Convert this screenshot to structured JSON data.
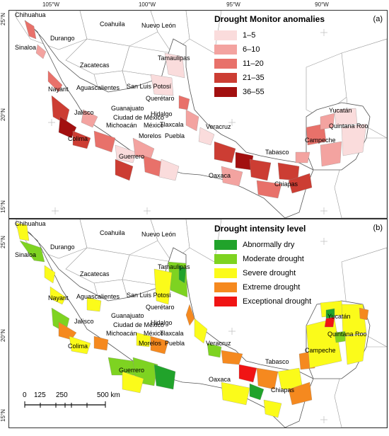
{
  "coordinates": {
    "longitudes": [
      "105°W",
      "100°W",
      "95°W",
      "90°W"
    ],
    "latitudes": [
      "25°N",
      "20°N",
      "15°N"
    ]
  },
  "panel_a": {
    "tag": "(a)",
    "legend": {
      "title": "Drought Monitor anomalies",
      "items": [
        {
          "label": "1–5",
          "color": "#fadcdc"
        },
        {
          "label": "6–10",
          "color": "#f3a3a0"
        },
        {
          "label": "11–20",
          "color": "#e8716a"
        },
        {
          "label": "21–35",
          "color": "#cc3d33"
        },
        {
          "label": "36–55",
          "color": "#a20f0f"
        }
      ]
    }
  },
  "panel_b": {
    "tag": "(b)",
    "legend": {
      "title": "Drought intensity level",
      "items": [
        {
          "label": "Abnormally dry",
          "color": "#21a32b"
        },
        {
          "label": "Moderate drought",
          "color": "#7ed321"
        },
        {
          "label": "Severe drought",
          "color": "#fbfb1a"
        },
        {
          "label": "Extreme drought",
          "color": "#f5891f"
        },
        {
          "label": "Exceptional drought",
          "color": "#f01414"
        }
      ]
    },
    "scale_bar": {
      "ticks": [
        "0",
        "125",
        "250",
        "500 km"
      ]
    }
  },
  "states": {
    "chihuahua": "Chihuahua",
    "durango": "Durango",
    "coahuila": "Coahuila",
    "nuevo_leon": "Nuevo León",
    "sinaloa": "Sinaloa",
    "tamaulipas": "Tamaulipas",
    "zacatecas": "Zacatecas",
    "nayarit": "Nayarit",
    "aguascalientes": "Aguascalientes",
    "san_luis_potosi": "San Luis Potosí",
    "queretaro": "Querétaro",
    "guanajuato": "Guanajuato",
    "hidalgo": "Hidalgo",
    "jalisco": "Jalisco",
    "ciudad_de_mexico": "Ciudad de México",
    "tlaxcala": "Tlaxcala",
    "michoacan": "Michoacán",
    "mexico": "México",
    "colima": "Colima",
    "morelos": "Morelos",
    "puebla": "Puebla",
    "veracruz": "Veracruz",
    "guerrero": "Guerrero",
    "oaxaca": "Oaxaca",
    "tabasco": "Tabasco",
    "chiapas": "Chiapas",
    "campeche": "Campeche",
    "yucatan": "Yucatán",
    "quintana_roo": "Quintana Roo"
  }
}
